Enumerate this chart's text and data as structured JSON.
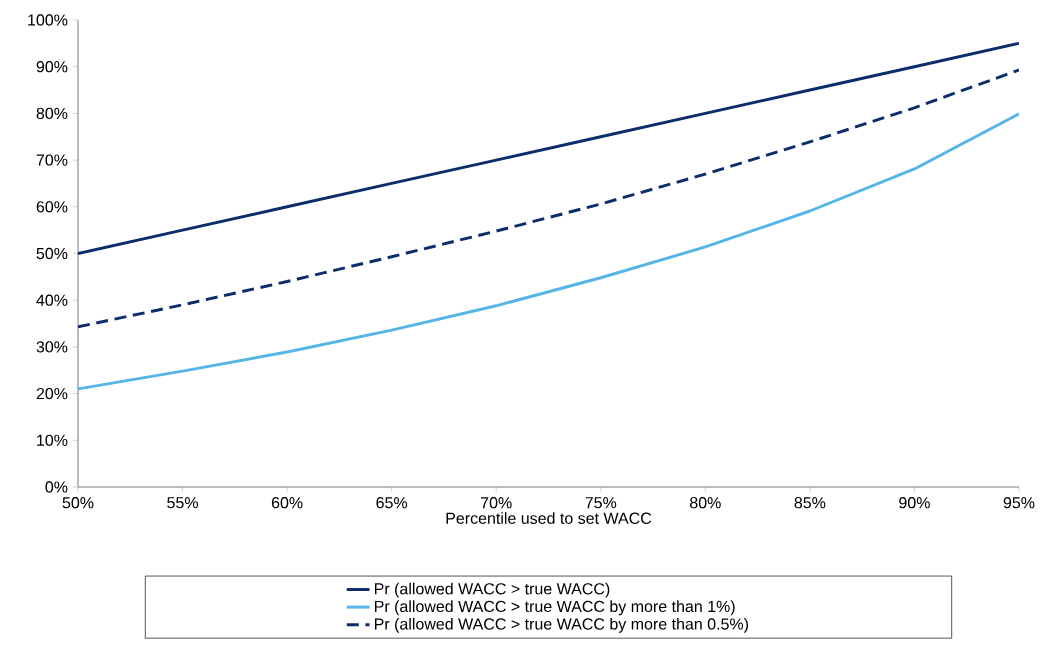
{
  "chart_data": {
    "type": "line",
    "xlabel": "Percentile used to set WACC",
    "x": [
      50,
      55,
      60,
      65,
      70,
      75,
      80,
      85,
      90,
      95
    ],
    "series": [
      {
        "name": "Pr (allowed WACC > true WACC)",
        "color": "#0b2d6b",
        "line_style": "solid",
        "values": [
          50,
          55,
          60,
          65,
          70,
          75,
          80,
          85,
          90,
          95
        ]
      },
      {
        "name": "Pr (allowed WACC > true WACC by more than 1%)",
        "color": "#55b5e6",
        "line_style": "solid",
        "values": [
          21,
          24.8,
          28.9,
          33.6,
          38.8,
          44.8,
          51.4,
          59.1,
          68.1,
          79.9
        ]
      },
      {
        "name": "Pr (allowed WACC > true WACC by more than 0.5%)",
        "color": "#0b2d6b",
        "line_style": "dashed",
        "values": [
          34.3,
          39,
          44,
          49.3,
          54.8,
          60.6,
          67,
          73.9,
          81.2,
          89.3
        ]
      }
    ],
    "xlim": [
      50,
      95
    ],
    "xticks": [
      {
        "value": 50,
        "label": "50%"
      },
      {
        "value": 55,
        "label": "55%"
      },
      {
        "value": 60,
        "label": "60%"
      },
      {
        "value": 65,
        "label": "65%"
      },
      {
        "value": 70,
        "label": "70%"
      },
      {
        "value": 75,
        "label": "75%"
      },
      {
        "value": 80,
        "label": "80%"
      },
      {
        "value": 85,
        "label": "85%"
      },
      {
        "value": 90,
        "label": "90%"
      },
      {
        "value": 95,
        "label": "95%"
      }
    ],
    "ylim": [
      0,
      100
    ],
    "yticks": [
      {
        "value": 0,
        "label": "0%"
      },
      {
        "value": 10,
        "label": "10%"
      },
      {
        "value": 20,
        "label": "20%"
      },
      {
        "value": 30,
        "label": "30%"
      },
      {
        "value": 40,
        "label": "40%"
      },
      {
        "value": 50,
        "label": "50%"
      },
      {
        "value": 60,
        "label": "60%"
      },
      {
        "value": 70,
        "label": "70%"
      },
      {
        "value": 80,
        "label": "80%"
      },
      {
        "value": 90,
        "label": "90%"
      },
      {
        "value": 100,
        "label": "100%"
      }
    ],
    "grid": false,
    "legend": "bottom",
    "marker": "none"
  }
}
